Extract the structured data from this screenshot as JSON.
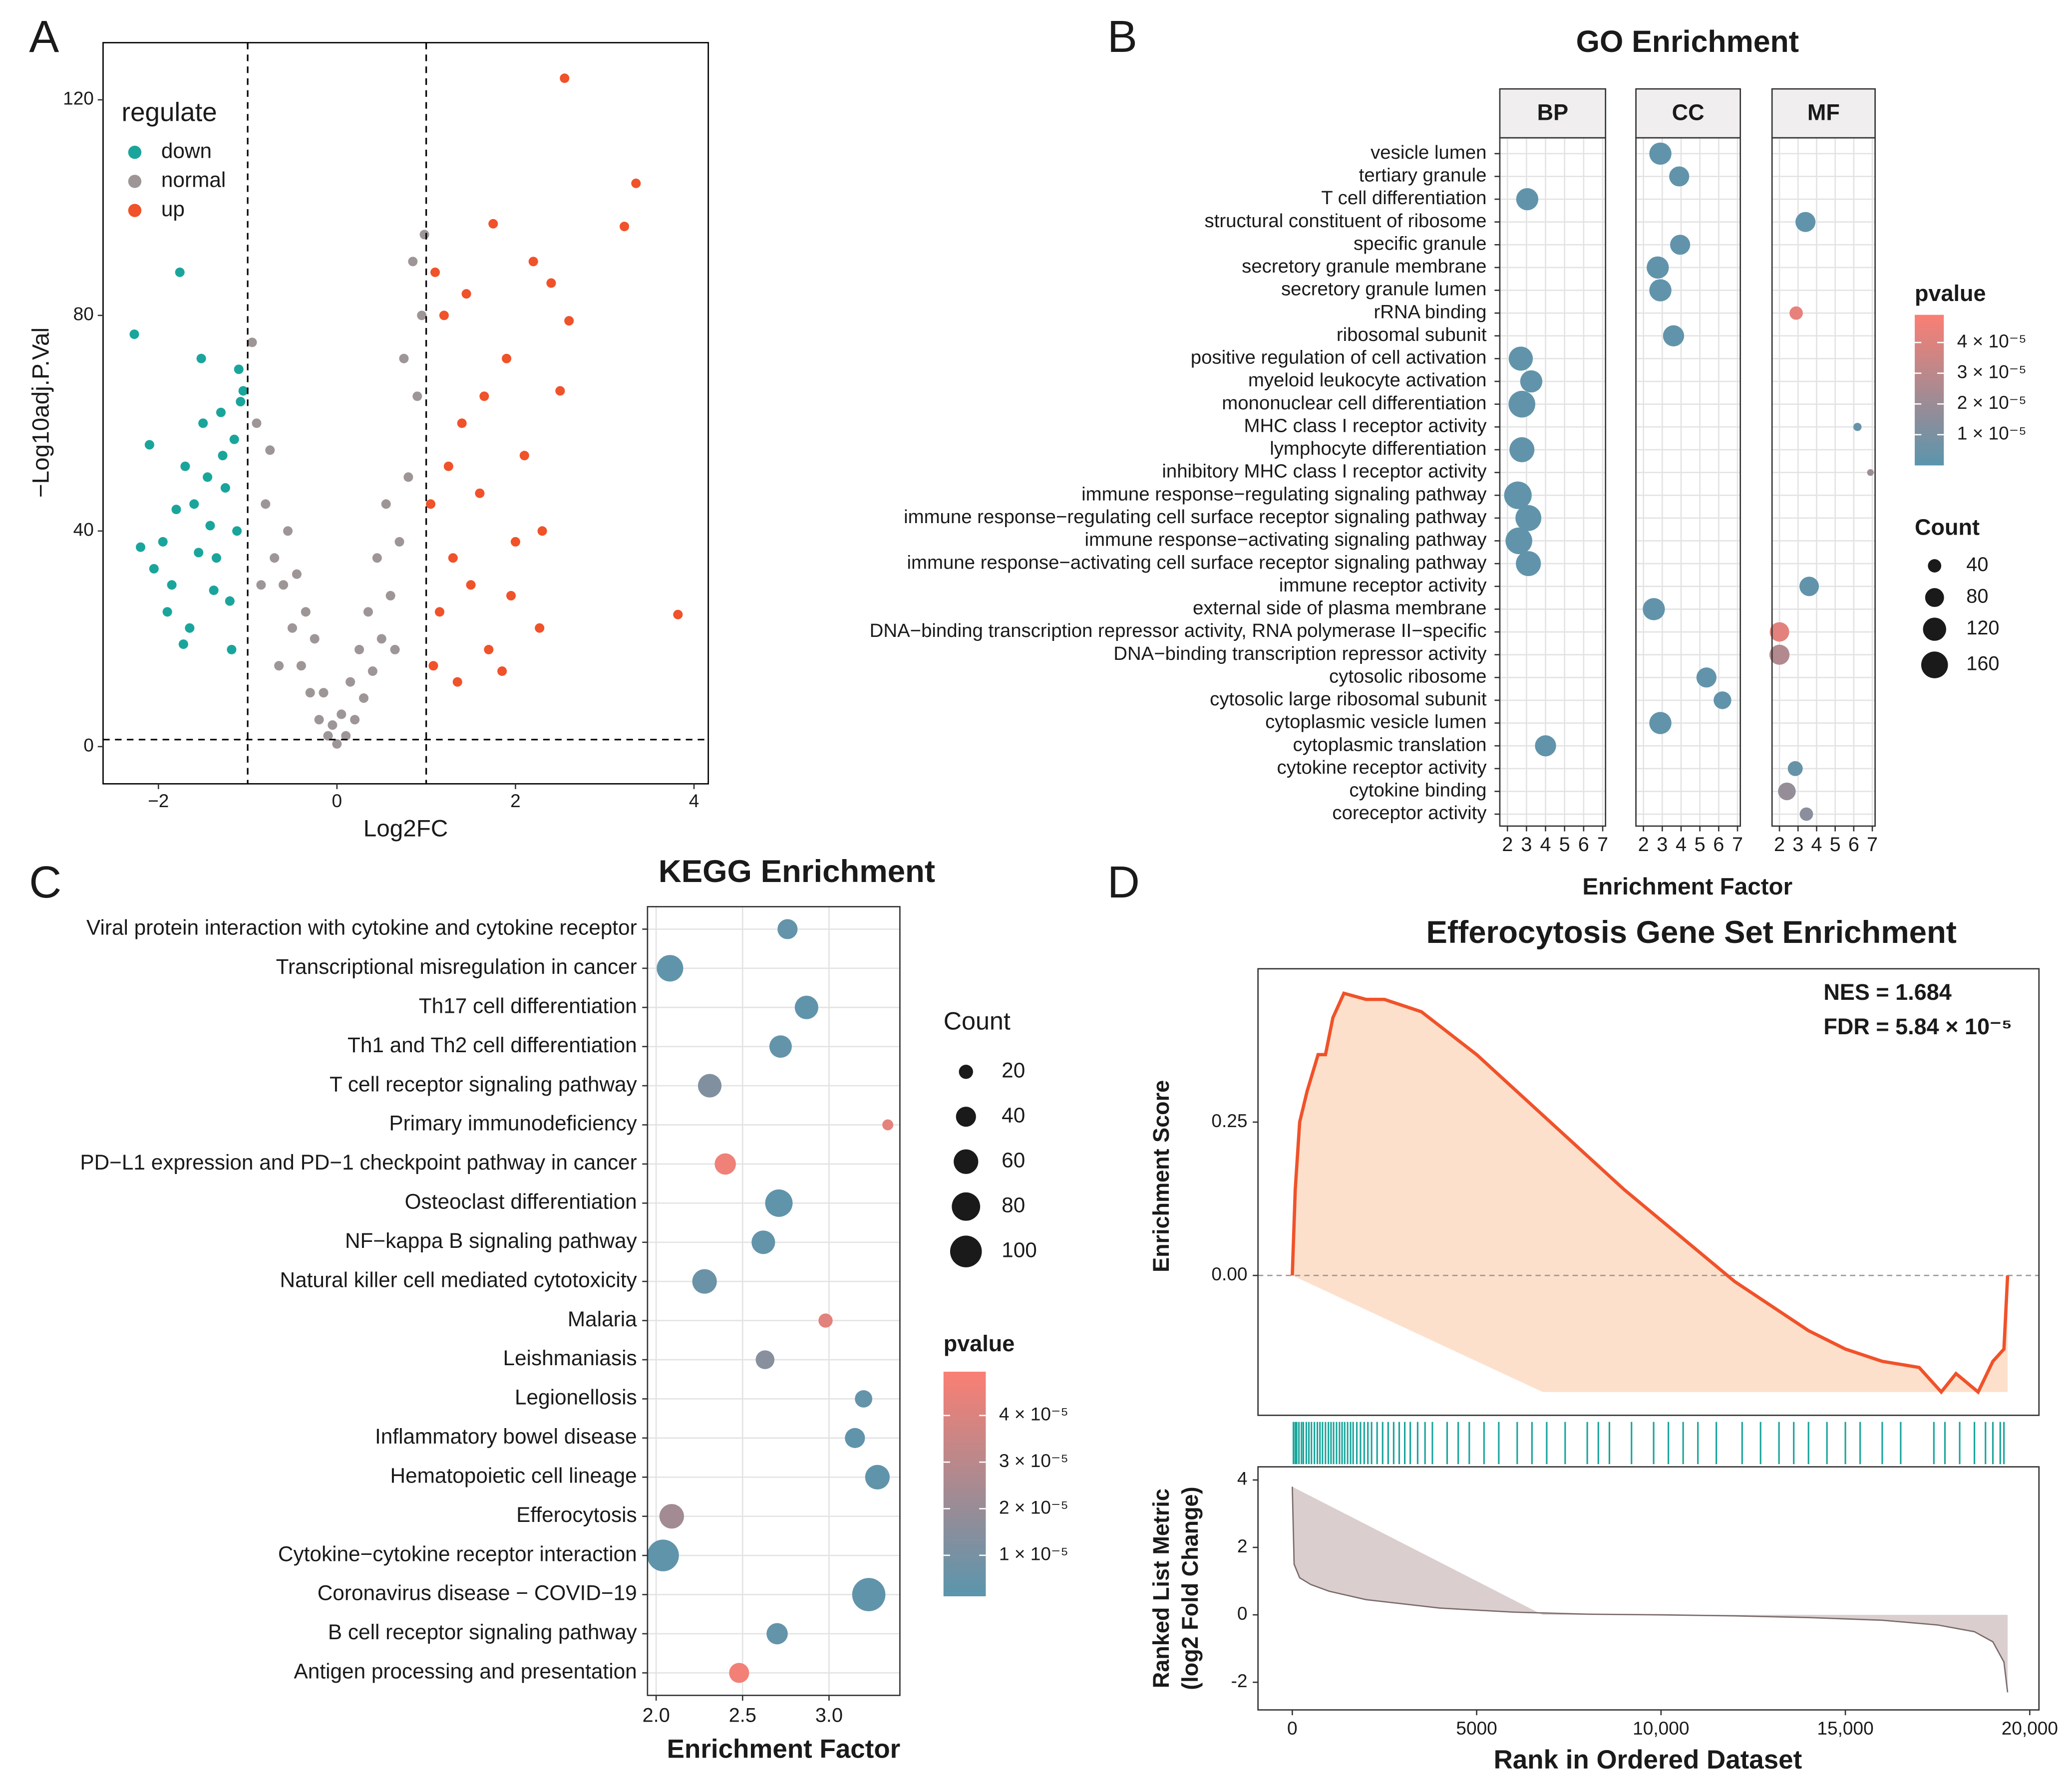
{
  "chart_data": [
    {
      "panel": "A",
      "type": "scatter",
      "xlabel": "Log2FC",
      "ylabel": "−Log10adj.P.Val",
      "legend_title": "regulate",
      "xlim": [
        -2.62,
        4.16
      ],
      "ylim": [
        -6.9,
        130.6
      ],
      "xticks": [
        {
          "value": -2,
          "label": "−2"
        },
        0,
        2,
        4
      ],
      "yticks": [
        0,
        40,
        80,
        120
      ],
      "vlines": [
        -1,
        1
      ],
      "hline": 1.3,
      "series": [
        {
          "name": "down",
          "color": "#1aa59c",
          "x": [
            -2.27,
            -1.76,
            -2.1,
            -1.95,
            -1.85,
            -1.7,
            -1.6,
            -1.5,
            -1.42,
            -1.35,
            -1.3,
            -1.25,
            -1.2,
            -1.15,
            -1.1,
            -1.05,
            -2.05,
            -1.9,
            -1.8,
            -1.65,
            -1.55,
            -1.45,
            -1.38,
            -1.28,
            -1.12,
            -1.52,
            -1.72,
            -2.2,
            -1.18,
            -1.08
          ],
          "y": [
            76.5,
            88,
            56,
            38,
            30,
            52,
            45,
            60,
            41,
            35,
            62,
            48,
            27,
            57,
            70,
            66,
            33,
            25,
            44,
            22,
            36,
            50,
            29,
            54,
            40,
            72,
            19,
            37,
            18,
            64
          ]
        },
        {
          "name": "normal",
          "color": "#9e9696",
          "x": [
            -0.95,
            -0.9,
            -0.8,
            -0.7,
            -0.6,
            -0.5,
            -0.4,
            -0.3,
            -0.2,
            -0.1,
            0,
            0.1,
            0.2,
            0.3,
            0.4,
            0.5,
            0.6,
            0.7,
            0.8,
            0.9,
            0.95,
            0.85,
            0.75,
            -0.75,
            -0.85,
            -0.65,
            -0.55,
            0.55,
            0.65,
            0.45,
            -0.45,
            0.35,
            -0.35,
            0.25,
            -0.25,
            0.15,
            -0.15,
            0.05,
            -0.05,
            0.98
          ],
          "y": [
            75,
            60,
            45,
            35,
            30,
            22,
            15,
            10,
            5,
            2,
            0.5,
            2,
            5,
            9,
            14,
            20,
            28,
            38,
            50,
            65,
            80,
            90,
            72,
            55,
            30,
            15,
            40,
            45,
            18,
            35,
            32,
            25,
            25,
            18,
            20,
            12,
            10,
            6,
            4,
            95
          ]
        },
        {
          "name": "up",
          "color": "#f0522a",
          "x": [
            2.55,
            3.35,
            3.22,
            3.82,
            2.6,
            2.2,
            1.75,
            2.3,
            2.5,
            2.1,
            1.9,
            1.6,
            1.4,
            1.3,
            1.2,
            1.1,
            1.05,
            1.15,
            1.5,
            1.7,
            1.85,
            2.27,
            2.0,
            1.35,
            1.25,
            1.45,
            2.4,
            1.65,
            1.08,
            1.95
          ],
          "y": [
            124,
            104.5,
            96.5,
            24.5,
            79,
            90,
            97,
            40,
            66,
            54,
            72,
            47,
            60,
            35,
            80,
            88,
            45,
            25,
            30,
            18,
            14,
            22,
            38,
            12,
            52,
            84,
            86,
            65,
            15,
            28
          ]
        }
      ]
    },
    {
      "panel": "B",
      "type": "facet_dot",
      "title": "GO Enrichment",
      "xlabel": "Enrichment Factor",
      "facets": [
        "BP",
        "CC",
        "MF"
      ],
      "xlim": [
        1.6,
        7.15
      ],
      "xticks": [
        2,
        3,
        4,
        5,
        6,
        7
      ],
      "categories": [
        "vesicle lumen",
        "tertiary granule",
        "T cell differentiation",
        "structural constituent of ribosome",
        "specific granule",
        "secretory granule membrane",
        "secretory granule lumen",
        "rRNA binding",
        "ribosomal subunit",
        "positive regulation of cell activation",
        "myeloid leukocyte activation",
        "mononuclear cell differentiation",
        "MHC class I receptor activity",
        "lymphocyte differentiation",
        "inhibitory MHC class I receptor activity",
        "immune response−regulating signaling pathway",
        "immune response−regulating cell surface receptor signaling pathway",
        "immune response−activating signaling pathway",
        "immune response−activating cell surface receptor signaling pathway",
        "immune receptor activity",
        "external side of plasma membrane",
        "DNA−binding transcription repressor activity, RNA polymerase II−specific",
        "DNA−binding transcription repressor activity",
        "cytosolic ribosome",
        "cytosolic large ribosomal subunit",
        "cytoplasmic vesicle lumen",
        "cytoplasmic translation",
        "cytokine receptor activity",
        "cytokine binding",
        "coreceptor activity"
      ],
      "points": [
        {
          "facet": "CC",
          "term": "vesicle lumen",
          "x": 2.9,
          "count": 110,
          "pvalue": 2e-06
        },
        {
          "facet": "CC",
          "term": "tertiary granule",
          "x": 3.9,
          "count": 90,
          "pvalue": 2e-06
        },
        {
          "facet": "BP",
          "term": "T cell differentiation",
          "x": 3.04,
          "count": 110,
          "pvalue": 2e-06
        },
        {
          "facet": "MF",
          "term": "structural constituent of ribosome",
          "x": 3.4,
          "count": 90,
          "pvalue": 2e-06
        },
        {
          "facet": "CC",
          "term": "specific granule",
          "x": 3.95,
          "count": 90,
          "pvalue": 2e-06
        },
        {
          "facet": "CC",
          "term": "secretory granule membrane",
          "x": 2.76,
          "count": 110,
          "pvalue": 2e-06
        },
        {
          "facet": "CC",
          "term": "secretory granule lumen",
          "x": 2.9,
          "count": 110,
          "pvalue": 2e-06
        },
        {
          "facet": "MF",
          "term": "rRNA binding",
          "x": 2.9,
          "count": 40,
          "pvalue": 4.3e-05
        },
        {
          "facet": "CC",
          "term": "ribosomal subunit",
          "x": 3.6,
          "count": 100,
          "pvalue": 2e-06
        },
        {
          "facet": "BP",
          "term": "positive regulation of cell activation",
          "x": 2.7,
          "count": 130,
          "pvalue": 2e-06
        },
        {
          "facet": "BP",
          "term": "myeloid leukocyte activation",
          "x": 3.25,
          "count": 110,
          "pvalue": 2e-06
        },
        {
          "facet": "BP",
          "term": "mononuclear cell differentiation",
          "x": 2.76,
          "count": 160,
          "pvalue": 2e-06
        },
        {
          "facet": "MF",
          "term": "MHC class I receptor activity",
          "x": 6.2,
          "count": 15,
          "pvalue": 4e-06
        },
        {
          "facet": "BP",
          "term": "lymphocyte differentiation",
          "x": 2.76,
          "count": 140,
          "pvalue": 2e-06
        },
        {
          "facet": "MF",
          "term": "inhibitory MHC class I receptor activity",
          "x": 6.9,
          "count": 10,
          "pvalue": 2e-05
        },
        {
          "facet": "BP",
          "term": "immune response−regulating signaling pathway",
          "x": 2.55,
          "count": 170,
          "pvalue": 2e-06
        },
        {
          "facet": "BP",
          "term": "immune response−regulating cell surface receptor signaling pathway",
          "x": 3.1,
          "count": 150,
          "pvalue": 2e-06
        },
        {
          "facet": "BP",
          "term": "immune response−activating signaling pathway",
          "x": 2.6,
          "count": 160,
          "pvalue": 2e-06
        },
        {
          "facet": "BP",
          "term": "immune response−activating cell surface receptor signaling pathway",
          "x": 3.1,
          "count": 140,
          "pvalue": 2e-06
        },
        {
          "facet": "MF",
          "term": "immune receptor activity",
          "x": 3.6,
          "count": 85,
          "pvalue": 2e-06
        },
        {
          "facet": "CC",
          "term": "external side of plasma membrane",
          "x": 2.55,
          "count": 110,
          "pvalue": 2e-06
        },
        {
          "facet": "MF",
          "term": "DNA−binding transcription repressor activity, RNA polymerase II−specific",
          "x": 2.0,
          "count": 85,
          "pvalue": 4.2e-05
        },
        {
          "facet": "MF",
          "term": "DNA−binding transcription repressor activity",
          "x": 2.0,
          "count": 90,
          "pvalue": 2.7e-05
        },
        {
          "facet": "CC",
          "term": "cytosolic ribosome",
          "x": 5.35,
          "count": 90,
          "pvalue": 2e-06
        },
        {
          "facet": "CC",
          "term": "cytosolic large ribosomal subunit",
          "x": 6.2,
          "count": 70,
          "pvalue": 2e-06
        },
        {
          "facet": "CC",
          "term": "cytoplasmic vesicle lumen",
          "x": 2.9,
          "count": 110,
          "pvalue": 2e-06
        },
        {
          "facet": "BP",
          "term": "cytoplasmic translation",
          "x": 4.0,
          "count": 100,
          "pvalue": 2e-06
        },
        {
          "facet": "MF",
          "term": "cytokine receptor activity",
          "x": 2.85,
          "count": 50,
          "pvalue": 4e-06
        },
        {
          "facet": "MF",
          "term": "cytokine binding",
          "x": 2.4,
          "count": 70,
          "pvalue": 1.8e-05
        },
        {
          "facet": "MF",
          "term": "coreceptor activity",
          "x": 3.45,
          "count": 40,
          "pvalue": 1.5e-05
        }
      ],
      "color_scale": {
        "title": "pvalue",
        "low": "#5a95ad",
        "high": "#fa7f74",
        "lim": [
          0,
          4.9e-05
        ],
        "ticks": [
          {
            "value": 1e-05,
            "label": "1 × 10⁻⁵"
          },
          {
            "value": 2e-05,
            "label": "2 × 10⁻⁵"
          },
          {
            "value": 3e-05,
            "label": "3 × 10⁻⁵"
          },
          {
            "value": 4e-05,
            "label": "4 × 10⁻⁵"
          }
        ]
      },
      "size_legend": {
        "title": "Count",
        "values": [
          40,
          80,
          120,
          160
        ]
      }
    },
    {
      "panel": "C",
      "type": "dot",
      "title": "KEGG Enrichment",
      "xlabel": "Enrichment Factor",
      "xlim": [
        1.95,
        3.41
      ],
      "xticks": [
        {
          "value": 2,
          "label": "2.0"
        },
        2.5,
        {
          "value": 3,
          "label": "3.0"
        }
      ],
      "categories": [
        "Viral protein interaction with cytokine and cytokine receptor",
        "Transcriptional misregulation in cancer",
        "Th17 cell differentiation",
        "Th1 and Th2 cell differentiation",
        "T cell receptor signaling pathway",
        "Primary immunodeficiency",
        "PD−L1 expression and PD−1 checkpoint pathway in cancer",
        "Osteoclast differentiation",
        "NF−kappa B signaling pathway",
        "Natural killer cell mediated cytotoxicity",
        "Malaria",
        "Leishmaniasis",
        "Legionellosis",
        "Inflammatory bowel disease",
        "Hematopoietic cell lineage",
        "Efferocytosis",
        "Cytokine−cytokine receptor interaction",
        "Coronavirus disease − COVID−19",
        "B cell receptor signaling pathway",
        "Antigen processing and presentation"
      ],
      "x": [
        2.76,
        2.08,
        2.87,
        2.72,
        2.31,
        3.34,
        2.4,
        2.71,
        2.62,
        2.28,
        2.98,
        2.63,
        3.2,
        3.15,
        3.28,
        2.09,
        2.04,
        3.23,
        2.7,
        2.48
      ],
      "count": [
        40,
        70,
        55,
        50,
        55,
        12,
        45,
        75,
        55,
        60,
        20,
        35,
        30,
        40,
        60,
        60,
        100,
        110,
        45,
        40
      ],
      "pvalue": [
        4e-06,
        3e-06,
        3e-06,
        4e-06,
        1.3e-05,
        4.3e-05,
        4.6e-05,
        3e-06,
        4e-06,
        6e-06,
        4.2e-05,
        1.5e-05,
        4e-06,
        3e-06,
        3e-06,
        2.3e-05,
        3e-06,
        3e-06,
        4e-06,
        4.7e-05
      ],
      "color_scale": {
        "title": "pvalue",
        "low": "#5a95ad",
        "high": "#fa7f74",
        "lim": [
          1.2e-06,
          4.94e-05
        ],
        "ticks": [
          {
            "value": 1e-05,
            "label": "1 × 10⁻⁵"
          },
          {
            "value": 2e-05,
            "label": "2 × 10⁻⁵"
          },
          {
            "value": 3e-05,
            "label": "3 × 10⁻⁵"
          },
          {
            "value": 4e-05,
            "label": "4 × 10⁻⁵"
          }
        ]
      },
      "size_legend": {
        "title": "Count",
        "values": [
          20,
          40,
          60,
          80,
          100
        ]
      }
    },
    {
      "panel": "D",
      "type": "gsea",
      "title": "Efferocytosis Gene Set Enrichment",
      "xlabel": "Rank in Ordered Dataset",
      "ylabel": "Enrichment Score",
      "ylabel2": [
        "Ranked List Metric",
        "(log2 Fold Change)"
      ],
      "annotations": [
        "NES = 1.684",
        "FDR = 5.84 × 10⁻⁵"
      ],
      "xlim": [
        -930,
        20250
      ],
      "xticks": [
        0,
        5000,
        {
          "value": 10000,
          "label": "10,000"
        },
        {
          "value": 15000,
          "label": "15,000"
        },
        {
          "value": 20000,
          "label": "20,000"
        }
      ],
      "ylim": [
        -0.228,
        0.5
      ],
      "yticks": [
        {
          "value": 0,
          "label": "0.00"
        },
        0.25
      ],
      "y2lim": [
        -2.82,
        4.39
      ],
      "y2ticks": [
        -2,
        0,
        2,
        4
      ],
      "line_color": "#f0522a",
      "fill_color": "#fde0cc",
      "hit_color": "#1aa59c",
      "metric_color": "#dacece",
      "es": {
        "x": [
          0,
          80,
          200,
          400,
          700,
          900,
          1100,
          1400,
          2000,
          2500,
          3500,
          5000,
          7000,
          9000,
          11000,
          12000,
          13000,
          14000,
          15000,
          16000,
          17000,
          17600,
          18000,
          18600,
          19000,
          19300,
          19400
        ],
        "y": [
          0,
          0.14,
          0.25,
          0.3,
          0.36,
          0.36,
          0.42,
          0.46,
          0.45,
          0.45,
          0.43,
          0.36,
          0.25,
          0.14,
          0.04,
          -0.01,
          -0.05,
          -0.09,
          -0.12,
          -0.14,
          -0.15,
          -0.19,
          -0.16,
          -0.19,
          -0.14,
          -0.12,
          0
        ]
      },
      "hits": [
        30,
        80,
        120,
        180,
        250,
        300,
        380,
        450,
        520,
        600,
        680,
        750,
        820,
        900,
        980,
        1050,
        1120,
        1200,
        1280,
        1350,
        1420,
        1500,
        1580,
        1650,
        1750,
        1850,
        1950,
        2050,
        2150,
        2300,
        2450,
        2600,
        2750,
        2900,
        3050,
        3200,
        3400,
        3600,
        3800,
        4200,
        4500,
        4800,
        5200,
        5600,
        6100,
        6500,
        6900,
        7400,
        8000,
        8300,
        8600,
        9200,
        9800,
        10200,
        10600,
        11000,
        11500,
        12200,
        12700,
        13200,
        13600,
        14000,
        14500,
        15000,
        15400,
        16000,
        16500,
        17400,
        17700,
        18100,
        18500,
        18800,
        19000,
        19200,
        19300
      ],
      "metric": {
        "x": [
          0,
          50,
          200,
          500,
          1000,
          2000,
          4000,
          6000,
          8000,
          10000,
          12000,
          14000,
          16000,
          17500,
          18500,
          19000,
          19300,
          19400
        ],
        "y": [
          3.8,
          1.5,
          1.1,
          0.9,
          0.7,
          0.45,
          0.2,
          0.08,
          0.02,
          0,
          -0.03,
          -0.08,
          -0.16,
          -0.3,
          -0.5,
          -0.8,
          -1.4,
          -2.3
        ]
      }
    }
  ]
}
